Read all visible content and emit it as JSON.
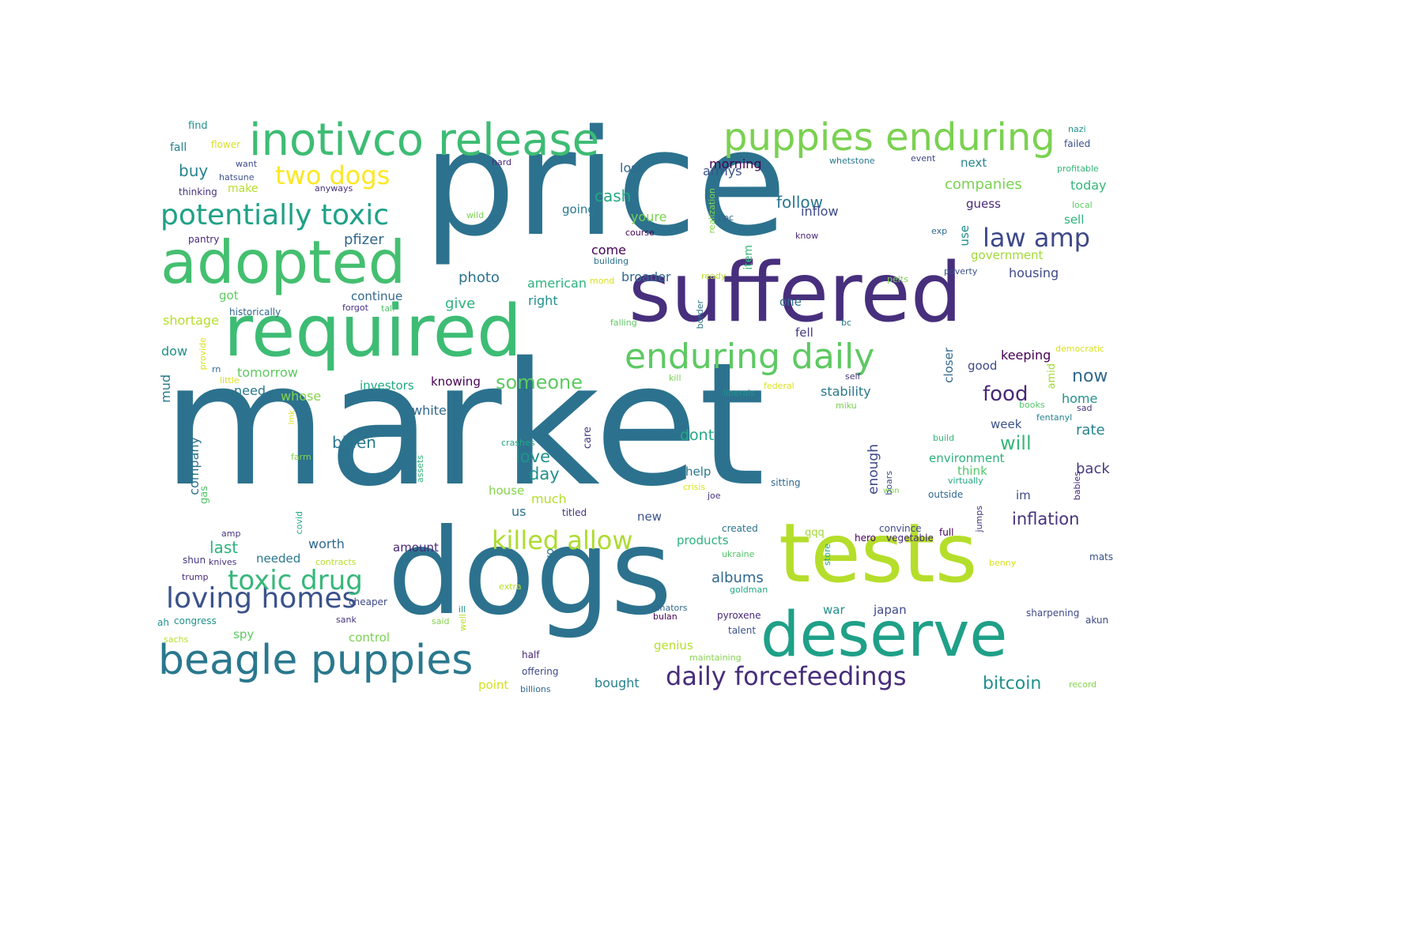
{
  "cloud": {
    "words": [
      {
        "text": "market",
        "color": "#2c728e"
      },
      {
        "text": "price",
        "color": "#2c728e"
      },
      {
        "text": "dogs",
        "color": "#2c728e"
      },
      {
        "text": "suffered",
        "color": "#472f7d"
      },
      {
        "text": "tests",
        "color": "#b5de2b"
      },
      {
        "text": "required",
        "color": "#3dbc74"
      },
      {
        "text": "deserve",
        "color": "#1fa088"
      },
      {
        "text": "adopted",
        "color": "#44bf70"
      },
      {
        "text": "inotivco release",
        "color": "#3dbc74"
      },
      {
        "text": "puppies enduring",
        "color": "#7ad151"
      },
      {
        "text": "beagle puppies",
        "color": "#2a788e"
      },
      {
        "text": "enduring daily",
        "color": "#5ec962"
      },
      {
        "text": "potentially toxic",
        "color": "#1fa187"
      },
      {
        "text": "loving homes",
        "color": "#3b528b"
      },
      {
        "text": "daily forcefeedings",
        "color": "#472d7b"
      },
      {
        "text": "killed allow",
        "color": "#addc30"
      },
      {
        "text": "toxic drug",
        "color": "#35b779"
      },
      {
        "text": "law amp",
        "color": "#3e4989"
      },
      {
        "text": "two dogs",
        "color": "#fde725"
      },
      {
        "text": "food",
        "color": "#482878"
      },
      {
        "text": "someone",
        "color": "#5ec962"
      },
      {
        "text": "inflation",
        "color": "#46327e"
      },
      {
        "text": "bitcoin",
        "color": "#21918c"
      },
      {
        "text": "will",
        "color": "#35b779"
      },
      {
        "text": "now",
        "color": "#31688e"
      },
      {
        "text": "cash",
        "color": "#22a884"
      },
      {
        "text": "follow",
        "color": "#2a788e"
      },
      {
        "text": "companies",
        "color": "#7ad151"
      },
      {
        "text": "love",
        "color": "#21918c"
      },
      {
        "text": "day",
        "color": "#21918c"
      },
      {
        "text": "last",
        "color": "#2db27d"
      },
      {
        "text": "biden",
        "color": "#2a788e"
      },
      {
        "text": "dont",
        "color": "#22a884"
      },
      {
        "text": "albums",
        "color": "#31688e"
      },
      {
        "text": "rate",
        "color": "#26828e"
      },
      {
        "text": "back",
        "color": "#443983"
      },
      {
        "text": "buy",
        "color": "#26828e"
      },
      {
        "text": "pfizer",
        "color": "#31688e"
      },
      {
        "text": "photo",
        "color": "#2c728e"
      },
      {
        "text": "give",
        "color": "#2db27d"
      },
      {
        "text": "morning",
        "color": "#440154"
      },
      {
        "text": "come",
        "color": "#440154"
      },
      {
        "text": "broader",
        "color": "#31688e"
      },
      {
        "text": "american",
        "color": "#2db27d"
      },
      {
        "text": "right",
        "color": "#21918c"
      },
      {
        "text": "going",
        "color": "#2a788e"
      },
      {
        "text": "youre",
        "color": "#7ad151"
      },
      {
        "text": "lost",
        "color": "#31688e"
      },
      {
        "text": "armys",
        "color": "#3b528b"
      },
      {
        "text": "inflow",
        "color": "#3e4989"
      },
      {
        "text": "next",
        "color": "#26828e"
      },
      {
        "text": "today",
        "color": "#35b779"
      },
      {
        "text": "guess",
        "color": "#482878"
      },
      {
        "text": "sell",
        "color": "#2db27d"
      },
      {
        "text": "government",
        "color": "#a2da37"
      },
      {
        "text": "housing",
        "color": "#3e4989"
      },
      {
        "text": "stability",
        "color": "#2a788e"
      },
      {
        "text": "keeping",
        "color": "#440154"
      },
      {
        "text": "good",
        "color": "#3e4989"
      },
      {
        "text": "home",
        "color": "#21918c"
      },
      {
        "text": "week",
        "color": "#3b528b"
      },
      {
        "text": "environment",
        "color": "#2db27d"
      },
      {
        "text": "think",
        "color": "#52c569"
      },
      {
        "text": "im",
        "color": "#3e4989"
      },
      {
        "text": "continue",
        "color": "#31688e"
      },
      {
        "text": "got",
        "color": "#5ec962"
      },
      {
        "text": "shortage",
        "color": "#b5de2b"
      },
      {
        "text": "dow",
        "color": "#21918c"
      },
      {
        "text": "tomorrow",
        "color": "#5ec962"
      },
      {
        "text": "need",
        "color": "#2a788e"
      },
      {
        "text": "whose",
        "color": "#84d44b"
      },
      {
        "text": "investors",
        "color": "#22a884"
      },
      {
        "text": "knowing",
        "color": "#440154"
      },
      {
        "text": "white",
        "color": "#31688e"
      },
      {
        "text": "smfr",
        "color": "#2c728e"
      },
      {
        "text": "help",
        "color": "#2a788e"
      },
      {
        "text": "us",
        "color": "#2c728e"
      },
      {
        "text": "much",
        "color": "#b5de2b"
      },
      {
        "text": "house",
        "color": "#84d44b"
      },
      {
        "text": "products",
        "color": "#2db27d"
      },
      {
        "text": "new",
        "color": "#3b528b"
      },
      {
        "text": "worth",
        "color": "#31688e"
      },
      {
        "text": "needed",
        "color": "#2a788e"
      },
      {
        "text": "amount",
        "color": "#482878"
      },
      {
        "text": "war",
        "color": "#21918c"
      },
      {
        "text": "japan",
        "color": "#3e4989"
      },
      {
        "text": "spy",
        "color": "#5ec962"
      },
      {
        "text": "control",
        "color": "#7ad151"
      },
      {
        "text": "genius",
        "color": "#b5de2b"
      },
      {
        "text": "bought",
        "color": "#26828e"
      },
      {
        "text": "point",
        "color": "#d2e21b"
      },
      {
        "text": "fall",
        "color": "#26828e"
      },
      {
        "text": "make",
        "color": "#b5de2b"
      },
      {
        "text": "find",
        "color": "#21918c"
      },
      {
        "text": "flower",
        "color": "#d8e219"
      },
      {
        "text": "want",
        "color": "#3e4989"
      },
      {
        "text": "hatsune",
        "color": "#3b528b"
      },
      {
        "text": "thinking",
        "color": "#46327e"
      },
      {
        "text": "anyways",
        "color": "#46327e"
      },
      {
        "text": "hard",
        "color": "#482878"
      },
      {
        "text": "wild",
        "color": "#7ad151"
      },
      {
        "text": "pantry",
        "color": "#482878"
      },
      {
        "text": "course",
        "color": "#440154"
      },
      {
        "text": "building",
        "color": "#2c728e"
      },
      {
        "text": "mond",
        "color": "#d8e219"
      },
      {
        "text": "ready",
        "color": "#b5de2b"
      },
      {
        "text": "historically",
        "color": "#31688e"
      },
      {
        "text": "forgot",
        "color": "#46327e"
      },
      {
        "text": "tall",
        "color": "#52c569"
      },
      {
        "text": "falling",
        "color": "#5ec962"
      },
      {
        "text": "kill",
        "color": "#7ad151"
      },
      {
        "text": "liberals",
        "color": "#21918c"
      },
      {
        "text": "federal",
        "color": "#d8e219"
      },
      {
        "text": "miku",
        "color": "#7ad151"
      },
      {
        "text": "self",
        "color": "#46327e"
      },
      {
        "text": "fell",
        "color": "#443983"
      },
      {
        "text": "one",
        "color": "#2c728e"
      },
      {
        "text": "bc",
        "color": "#2a788e"
      },
      {
        "text": "know",
        "color": "#482878"
      },
      {
        "text": "npc",
        "color": "#31688e"
      },
      {
        "text": "exp",
        "color": "#31688e"
      },
      {
        "text": "poverty",
        "color": "#3b528b"
      },
      {
        "text": "pelts",
        "color": "#7ad151"
      },
      {
        "text": "event",
        "color": "#3e4989"
      },
      {
        "text": "whetstone",
        "color": "#2a788e"
      },
      {
        "text": "nazi",
        "color": "#21918c"
      },
      {
        "text": "failed",
        "color": "#3b528b"
      },
      {
        "text": "profitable",
        "color": "#35b779"
      },
      {
        "text": "local",
        "color": "#5ec962"
      },
      {
        "text": "democratic",
        "color": "#d8e219"
      },
      {
        "text": "books",
        "color": "#52c569"
      },
      {
        "text": "sad",
        "color": "#46327e"
      },
      {
        "text": "fentanyl",
        "color": "#26828e"
      },
      {
        "text": "build",
        "color": "#35b779"
      },
      {
        "text": "virtually",
        "color": "#22a884"
      },
      {
        "text": "outside",
        "color": "#31688e"
      },
      {
        "text": "convince",
        "color": "#3e4989"
      },
      {
        "text": "vegetable",
        "color": "#482878"
      },
      {
        "text": "full",
        "color": "#440154"
      },
      {
        "text": "hero",
        "color": "#440154"
      },
      {
        "text": "qqq",
        "color": "#a2da37"
      },
      {
        "text": "created",
        "color": "#2c728e"
      },
      {
        "text": "ukraine",
        "color": "#52c569"
      },
      {
        "text": "goldman",
        "color": "#22a884"
      },
      {
        "text": "senators",
        "color": "#31688e"
      },
      {
        "text": "bulan",
        "color": "#440154"
      },
      {
        "text": "pyroxene",
        "color": "#482878"
      },
      {
        "text": "talent",
        "color": "#3b528b"
      },
      {
        "text": "maintaining",
        "color": "#84d44b"
      },
      {
        "text": "offering",
        "color": "#3e4989"
      },
      {
        "text": "billions",
        "color": "#31688e"
      },
      {
        "text": "half",
        "color": "#482878"
      },
      {
        "text": "titled",
        "color": "#46327e"
      },
      {
        "text": "crashes",
        "color": "#22a884"
      },
      {
        "text": "crisis",
        "color": "#d8e219"
      },
      {
        "text": "joe",
        "color": "#46327e"
      },
      {
        "text": "sitting",
        "color": "#31688e"
      },
      {
        "text": "won",
        "color": "#7ad151"
      },
      {
        "text": "benny",
        "color": "#d8e219"
      },
      {
        "text": "mats",
        "color": "#3b528b"
      },
      {
        "text": "sharpening",
        "color": "#3e4989"
      },
      {
        "text": "akun",
        "color": "#3e4989"
      },
      {
        "text": "record",
        "color": "#84d44b"
      },
      {
        "text": "extra",
        "color": "#b5de2b"
      },
      {
        "text": "cheaper",
        "color": "#3e4989"
      },
      {
        "text": "sank",
        "color": "#46327e"
      },
      {
        "text": "said",
        "color": "#84d44b"
      },
      {
        "text": "ill",
        "color": "#21918c"
      },
      {
        "text": "congress",
        "color": "#21918c"
      },
      {
        "text": "sachs",
        "color": "#b5de2b"
      },
      {
        "text": "ah",
        "color": "#21918c"
      },
      {
        "text": "trump",
        "color": "#482878"
      },
      {
        "text": "shun",
        "color": "#443983"
      },
      {
        "text": "knives",
        "color": "#46327e"
      },
      {
        "text": "contracts",
        "color": "#b5de2b"
      },
      {
        "text": "amp",
        "color": "#46327e"
      },
      {
        "text": "farm",
        "color": "#84d44b"
      },
      {
        "text": "rn",
        "color": "#31688e"
      },
      {
        "text": "little",
        "color": "#d8e219"
      },
      {
        "text": "realization",
        "color": "#84d44b"
      },
      {
        "text": "item",
        "color": "#35b779"
      },
      {
        "text": "border",
        "color": "#2c728e"
      },
      {
        "text": "use",
        "color": "#21918c"
      },
      {
        "text": "closer",
        "color": "#31688e"
      },
      {
        "text": "amid",
        "color": "#a2da37"
      },
      {
        "text": "enough",
        "color": "#3e4989"
      },
      {
        "text": "care",
        "color": "#443983"
      },
      {
        "text": "company",
        "color": "#2c728e"
      },
      {
        "text": "gas",
        "color": "#52c569"
      },
      {
        "text": "mud",
        "color": "#2a788e"
      },
      {
        "text": "provide",
        "color": "#d8e219"
      },
      {
        "text": "lmk",
        "color": "#d8e219"
      },
      {
        "text": "assets",
        "color": "#35b779"
      },
      {
        "text": "covid",
        "color": "#22a884"
      },
      {
        "text": "two",
        "color": "#2c728e"
      },
      {
        "text": "well",
        "color": "#b5de2b"
      },
      {
        "text": "store",
        "color": "#22a884"
      },
      {
        "text": "boars",
        "color": "#3e4989"
      },
      {
        "text": "jumps",
        "color": "#46327e"
      },
      {
        "text": "babies",
        "color": "#482878"
      }
    ]
  }
}
